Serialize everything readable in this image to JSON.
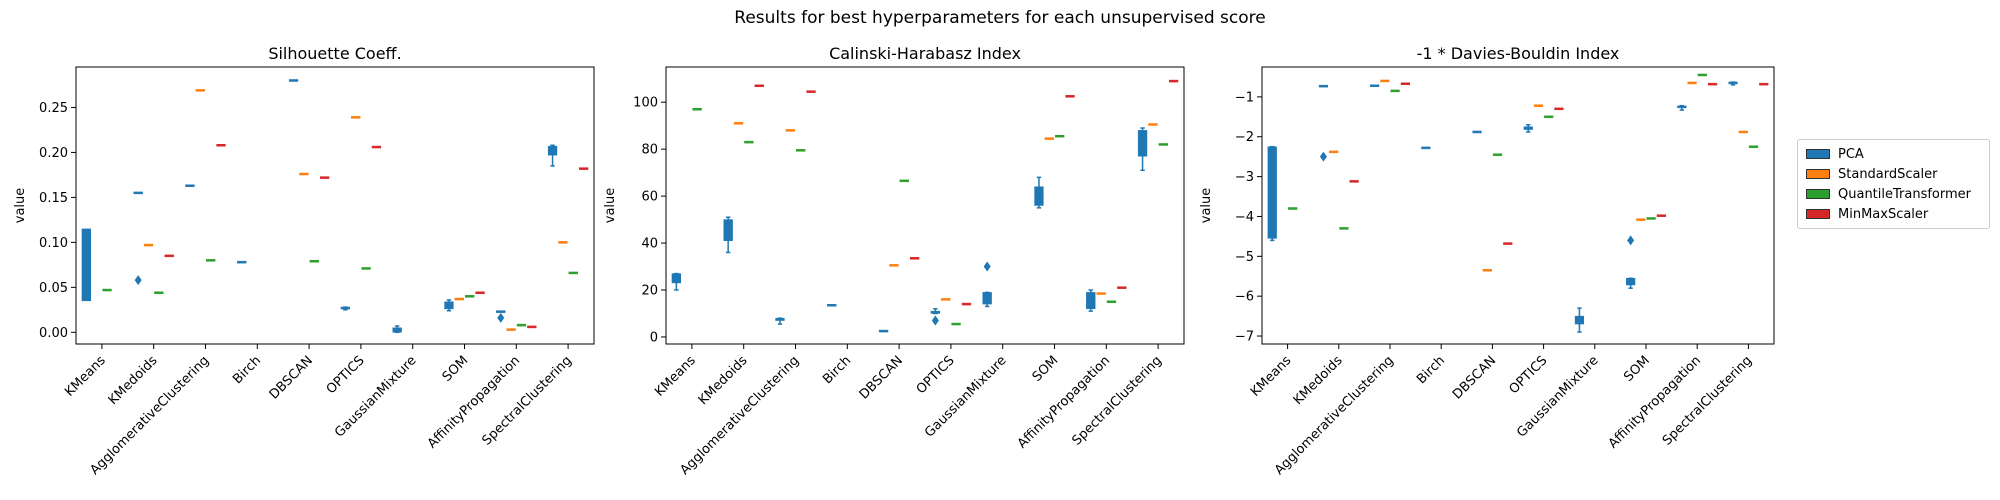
{
  "suptitle": "Results for best hyperparameters for each unsupervised score",
  "legend": [
    {
      "name": "PCA",
      "color": "#1f77b4"
    },
    {
      "name": "StandardScaler",
      "color": "#ff7f0e"
    },
    {
      "name": "QuantileTransformer",
      "color": "#2ca02c"
    },
    {
      "name": "MinMaxScaler",
      "color": "#d62728"
    }
  ],
  "chart_data": [
    {
      "type": "box",
      "title": "Silhouette Coeff.",
      "ylabel": "value",
      "ylim": [
        -0.013,
        0.295
      ],
      "yticks": [
        "0.00",
        "0.05",
        "0.10",
        "0.15",
        "0.20",
        "0.25"
      ],
      "categories": [
        "KMeans",
        "KMedoids",
        "AgglomerativeClustering",
        "Birch",
        "DBSCAN",
        "OPTICS",
        "GaussianMixture",
        "SOM",
        "AffinityPropagation",
        "SpectralClustering"
      ],
      "series": [
        {
          "name": "PCA",
          "boxes": [
            [
              0.035,
              0.035,
              0.115,
              0.115
            ],
            [
              0.155,
              0.155,
              0.155,
              0.155
            ],
            [
              0.163,
              0.163,
              0.163,
              0.163
            ],
            [
              0.078,
              0.078,
              0.078,
              0.078
            ],
            [
              0.28,
              0.28,
              0.28,
              0.28
            ],
            [
              0.025,
              0.026,
              0.027,
              0.028
            ],
            [
              0.0,
              0.0,
              0.005,
              0.007
            ],
            [
              0.024,
              0.026,
              0.034,
              0.036
            ],
            [
              0.023,
              0.023,
              0.023,
              0.023
            ],
            [
              0.185,
              0.197,
              0.207,
              0.208
            ]
          ],
          "outliers": [
            [],
            [
              0.058
            ],
            [],
            [],
            [],
            [],
            [],
            [],
            [
              0.016
            ],
            []
          ]
        },
        {
          "name": "StandardScaler",
          "boxes": [
            null,
            [
              0.097,
              0.097,
              0.097,
              0.097
            ],
            [
              0.269,
              0.269,
              0.269,
              0.269
            ],
            null,
            [
              0.176,
              0.176,
              0.176,
              0.176
            ],
            [
              0.239,
              0.239,
              0.239,
              0.239
            ],
            null,
            [
              0.037,
              0.037,
              0.037,
              0.037
            ],
            [
              0.003,
              0.003,
              0.003,
              0.003
            ],
            [
              0.1,
              0.1,
              0.1,
              0.1
            ]
          ],
          "outliers": [
            [],
            [],
            [],
            [],
            [],
            [],
            [],
            [],
            [],
            []
          ]
        },
        {
          "name": "QuantileTransformer",
          "boxes": [
            [
              0.047,
              0.047,
              0.047,
              0.047
            ],
            [
              0.044,
              0.044,
              0.044,
              0.044
            ],
            [
              0.08,
              0.08,
              0.08,
              0.08
            ],
            null,
            [
              0.079,
              0.079,
              0.079,
              0.079
            ],
            [
              0.071,
              0.071,
              0.071,
              0.071
            ],
            null,
            [
              0.04,
              0.04,
              0.04,
              0.04
            ],
            [
              0.008,
              0.008,
              0.008,
              0.008
            ],
            [
              0.066,
              0.066,
              0.066,
              0.066
            ]
          ],
          "outliers": [
            [],
            [],
            [],
            [],
            [],
            [],
            [],
            [],
            [],
            []
          ]
        },
        {
          "name": "MinMaxScaler",
          "boxes": [
            null,
            [
              0.085,
              0.085,
              0.085,
              0.085
            ],
            [
              0.208,
              0.208,
              0.208,
              0.208
            ],
            null,
            [
              0.172,
              0.172,
              0.172,
              0.172
            ],
            [
              0.206,
              0.206,
              0.206,
              0.206
            ],
            null,
            [
              0.044,
              0.044,
              0.044,
              0.044
            ],
            [
              0.006,
              0.006,
              0.006,
              0.006
            ],
            [
              0.182,
              0.182,
              0.182,
              0.182
            ]
          ],
          "outliers": [
            [],
            [],
            [],
            [],
            [],
            [],
            [],
            [],
            [],
            []
          ]
        }
      ]
    },
    {
      "type": "box",
      "title": "Calinski-Harabasz Index",
      "ylabel": "value",
      "ylim": [
        -3,
        115
      ],
      "yticks": [
        "0",
        "20",
        "40",
        "60",
        "80",
        "100"
      ],
      "categories": [
        "KMeans",
        "KMedoids",
        "AgglomerativeClustering",
        "Birch",
        "DBSCAN",
        "OPTICS",
        "GaussianMixture",
        "SOM",
        "AffinityPropagation",
        "SpectralClustering"
      ],
      "series": [
        {
          "name": "PCA",
          "boxes": [
            [
              20,
              23,
              27,
              27
            ],
            [
              36,
              41,
              50,
              51
            ],
            [
              5.5,
              7,
              8,
              8
            ],
            [
              13.5,
              13.5,
              13.5,
              13.5
            ],
            [
              2.5,
              2.5,
              2.5,
              2.5
            ],
            [
              10,
              10,
              11,
              12
            ],
            [
              13,
              14,
              19,
              19
            ],
            [
              55,
              56,
              64,
              68
            ],
            [
              11,
              12,
              19,
              20
            ],
            [
              71,
              77,
              88,
              89
            ]
          ],
          "outliers": [
            [],
            [],
            [],
            [],
            [],
            [
              7
            ],
            [
              30
            ],
            [],
            [],
            []
          ]
        },
        {
          "name": "StandardScaler",
          "boxes": [
            null,
            [
              91,
              91,
              91,
              91
            ],
            [
              88,
              88,
              88,
              88
            ],
            null,
            [
              30.5,
              30.5,
              30.5,
              30.5
            ],
            [
              16,
              16,
              16,
              16
            ],
            null,
            [
              84.5,
              84.5,
              84.5,
              84.5
            ],
            [
              18.5,
              18.5,
              18.5,
              18.5
            ],
            [
              90.5,
              90.5,
              90.5,
              90.5
            ]
          ],
          "outliers": [
            [],
            [],
            [],
            [],
            [],
            [],
            [],
            [],
            [],
            []
          ]
        },
        {
          "name": "QuantileTransformer",
          "boxes": [
            [
              97,
              97,
              97,
              97
            ],
            [
              83,
              83,
              83,
              83
            ],
            [
              79.5,
              79.5,
              79.5,
              79.5
            ],
            null,
            [
              66.5,
              66.5,
              66.5,
              66.5
            ],
            [
              5.5,
              5.5,
              5.5,
              5.5
            ],
            null,
            [
              85.5,
              85.5,
              85.5,
              85.5
            ],
            [
              15,
              15,
              15,
              15
            ],
            [
              82,
              82,
              82,
              82
            ]
          ],
          "outliers": [
            [],
            [],
            [],
            [],
            [],
            [],
            [],
            [],
            [],
            []
          ]
        },
        {
          "name": "MinMaxScaler",
          "boxes": [
            null,
            [
              107,
              107,
              107,
              107
            ],
            [
              104.5,
              104.5,
              104.5,
              104.5
            ],
            null,
            [
              33.5,
              33.5,
              33.5,
              33.5
            ],
            [
              14,
              14,
              14,
              14
            ],
            null,
            [
              102.5,
              102.5,
              102.5,
              102.5
            ],
            [
              21,
              21,
              21,
              21
            ],
            [
              109,
              109,
              109,
              109
            ]
          ],
          "outliers": [
            [],
            [],
            [],
            [],
            [],
            [],
            [],
            [],
            [],
            []
          ]
        }
      ]
    },
    {
      "type": "box",
      "title": "-1 * Davies-Bouldin Index",
      "ylabel": "value",
      "ylim": [
        -7.2,
        -0.25
      ],
      "yticks": [
        "−7",
        "−6",
        "−5",
        "−4",
        "−3",
        "−2",
        "−1"
      ],
      "ytick_values": [
        -7,
        -6,
        -5,
        -4,
        -3,
        -2,
        -1
      ],
      "categories": [
        "KMeans",
        "KMedoids",
        "AgglomerativeClustering",
        "Birch",
        "DBSCAN",
        "OPTICS",
        "GaussianMixture",
        "SOM",
        "AffinityPropagation",
        "SpectralClustering"
      ],
      "series": [
        {
          "name": "PCA",
          "boxes": [
            [
              -4.6,
              -4.55,
              -2.25,
              -2.25
            ],
            [
              -0.73,
              -0.73,
              -0.73,
              -0.73
            ],
            [
              -0.72,
              -0.72,
              -0.72,
              -0.72
            ],
            [
              -2.28,
              -2.28,
              -2.28,
              -2.28
            ],
            [
              -1.88,
              -1.88,
              -1.88,
              -1.88
            ],
            [
              -1.88,
              -1.82,
              -1.75,
              -1.7
            ],
            [
              -6.9,
              -6.7,
              -6.5,
              -6.3
            ],
            [
              -5.8,
              -5.72,
              -5.55,
              -5.55
            ],
            [
              -1.33,
              -1.3,
              -1.25,
              -1.22
            ],
            [
              -0.7,
              -0.68,
              -0.65,
              -0.63
            ]
          ],
          "outliers": [
            [],
            [
              -2.5
            ],
            [],
            [],
            [],
            [],
            [],
            [
              -4.6
            ],
            [],
            []
          ]
        },
        {
          "name": "StandardScaler",
          "boxes": [
            null,
            [
              -2.38,
              -2.38,
              -2.38,
              -2.38
            ],
            [
              -0.6,
              -0.6,
              -0.6,
              -0.6
            ],
            null,
            [
              -5.35,
              -5.35,
              -5.35,
              -5.35
            ],
            [
              -1.22,
              -1.22,
              -1.22,
              -1.22
            ],
            null,
            [
              -4.08,
              -4.08,
              -4.08,
              -4.08
            ],
            [
              -0.65,
              -0.65,
              -0.65,
              -0.65
            ],
            [
              -1.88,
              -1.88,
              -1.88,
              -1.88
            ]
          ],
          "outliers": [
            [],
            [],
            [],
            [],
            [],
            [],
            [],
            [],
            [],
            []
          ]
        },
        {
          "name": "QuantileTransformer",
          "boxes": [
            [
              -3.8,
              -3.8,
              -3.8,
              -3.8
            ],
            [
              -4.3,
              -4.3,
              -4.3,
              -4.3
            ],
            [
              -0.85,
              -0.85,
              -0.85,
              -0.85
            ],
            null,
            [
              -2.45,
              -2.45,
              -2.45,
              -2.45
            ],
            [
              -1.5,
              -1.5,
              -1.5,
              -1.5
            ],
            null,
            [
              -4.05,
              -4.05,
              -4.05,
              -4.05
            ],
            [
              -0.45,
              -0.45,
              -0.45,
              -0.45
            ],
            [
              -2.25,
              -2.25,
              -2.25,
              -2.25
            ]
          ],
          "outliers": [
            [],
            [],
            [],
            [],
            [],
            [],
            [],
            [],
            [],
            []
          ]
        },
        {
          "name": "MinMaxScaler",
          "boxes": [
            null,
            [
              -3.12,
              -3.12,
              -3.12,
              -3.12
            ],
            [
              -0.67,
              -0.67,
              -0.67,
              -0.67
            ],
            null,
            [
              -4.68,
              -4.68,
              -4.68,
              -4.68
            ],
            [
              -1.3,
              -1.3,
              -1.3,
              -1.3
            ],
            null,
            [
              -3.98,
              -3.98,
              -3.98,
              -3.98
            ],
            [
              -0.68,
              -0.68,
              -0.68,
              -0.68
            ],
            [
              -0.68,
              -0.68,
              -0.68,
              -0.68
            ]
          ],
          "outliers": [
            [],
            [],
            [],
            [],
            [],
            [],
            [],
            [],
            [],
            []
          ]
        }
      ]
    }
  ]
}
